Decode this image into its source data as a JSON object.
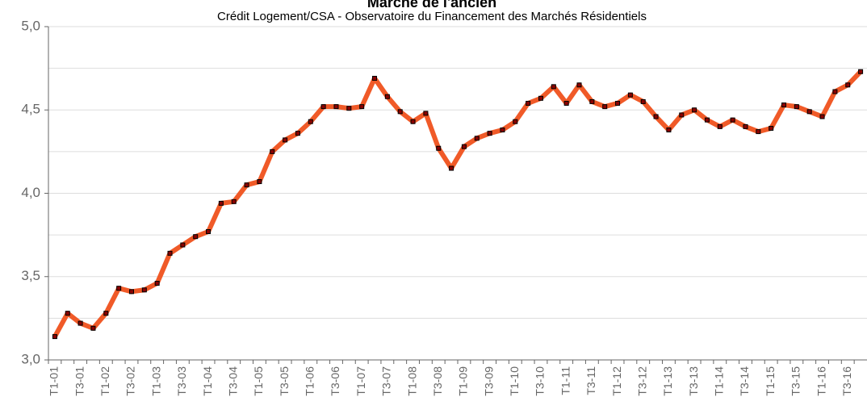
{
  "chart_data": {
    "type": "line",
    "title": "Marché de l'ancien",
    "subtitle": "Crédit Logement/CSA - Observatoire du Financement des Marchés Résidentiels",
    "categories": [
      "T1-01",
      null,
      "T3-01",
      null,
      "T1-02",
      null,
      "T3-02",
      null,
      "T1-03",
      null,
      "T3-03",
      null,
      "T1-04",
      null,
      "T3-04",
      null,
      "T1-05",
      null,
      "T3-05",
      null,
      "T1-06",
      null,
      "T3-06",
      null,
      "T1-07",
      null,
      "T3-07",
      null,
      "T1-08",
      null,
      "T3-08",
      null,
      "T1-09",
      null,
      "T3-09",
      null,
      "T1-10",
      null,
      "T3-10",
      null,
      "T1-11",
      null,
      "T3-11",
      null,
      "T1-12",
      null,
      "T3-12",
      null,
      "T1-13",
      null,
      "T3-13",
      null,
      "T1-14",
      null,
      "T3-14",
      null,
      "T1-15",
      null,
      "T3-15",
      null,
      "T1-16",
      null,
      "T3-16",
      null
    ],
    "values": [
      3.14,
      3.28,
      3.22,
      3.19,
      3.28,
      3.43,
      3.41,
      3.42,
      3.46,
      3.64,
      3.69,
      3.74,
      3.77,
      3.94,
      3.95,
      4.05,
      4.07,
      4.25,
      4.32,
      4.36,
      4.43,
      4.52,
      4.52,
      4.51,
      4.52,
      4.69,
      4.58,
      4.49,
      4.43,
      4.48,
      4.27,
      4.15,
      4.28,
      4.33,
      4.36,
      4.38,
      4.43,
      4.54,
      4.57,
      4.64,
      4.54,
      4.65,
      4.55,
      4.52,
      4.54,
      4.59,
      4.55,
      4.46,
      4.38,
      4.47,
      4.5,
      4.44,
      4.4,
      4.44,
      4.4,
      4.37,
      4.39,
      4.53,
      4.52,
      4.49,
      4.46,
      4.61,
      4.65,
      4.73
    ],
    "color": "#f05a28",
    "marker_color": "#8b0000",
    "ylim": [
      3,
      5
    ],
    "yticks": [
      {
        "value": 3,
        "label": "3,0"
      },
      {
        "value": 3.5,
        "label": "3,5"
      },
      {
        "value": 4,
        "label": "4,0"
      },
      {
        "value": 4.5,
        "label": "4,5"
      },
      {
        "value": 5,
        "label": "5,0"
      }
    ],
    "minor_yticks": [
      3.25,
      3.75,
      4.25,
      4.75
    ],
    "grid": true
  }
}
